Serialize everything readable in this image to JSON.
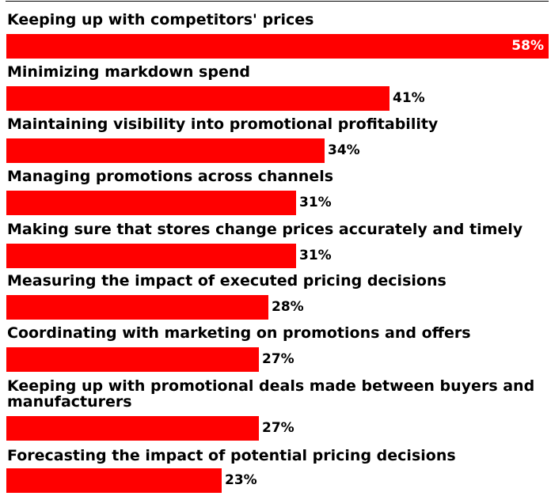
{
  "chart_data": {
    "type": "bar",
    "orientation": "horizontal",
    "categories": [
      "Keeping up with competitors' prices",
      "Minimizing markdown spend",
      "Maintaining visibility into promotional profitability",
      "Managing promotions across channels",
      "Making sure that stores change prices accurately and timely",
      "Measuring the impact of executed pricing decisions",
      "Coordinating with marketing on promotions and offers",
      "Keeping up with promotional deals made between buyers and manufacturers",
      "Forecasting the impact of potential pricing decisions"
    ],
    "values": [
      58,
      41,
      34,
      31,
      31,
      28,
      27,
      27,
      23
    ],
    "value_labels": [
      "58%",
      "41%",
      "34%",
      "31%",
      "31%",
      "28%",
      "27%",
      "27%",
      "23%"
    ],
    "xlim": [
      0,
      58
    ],
    "grid": false,
    "legend": "none",
    "bar_color": "#ff0000"
  }
}
